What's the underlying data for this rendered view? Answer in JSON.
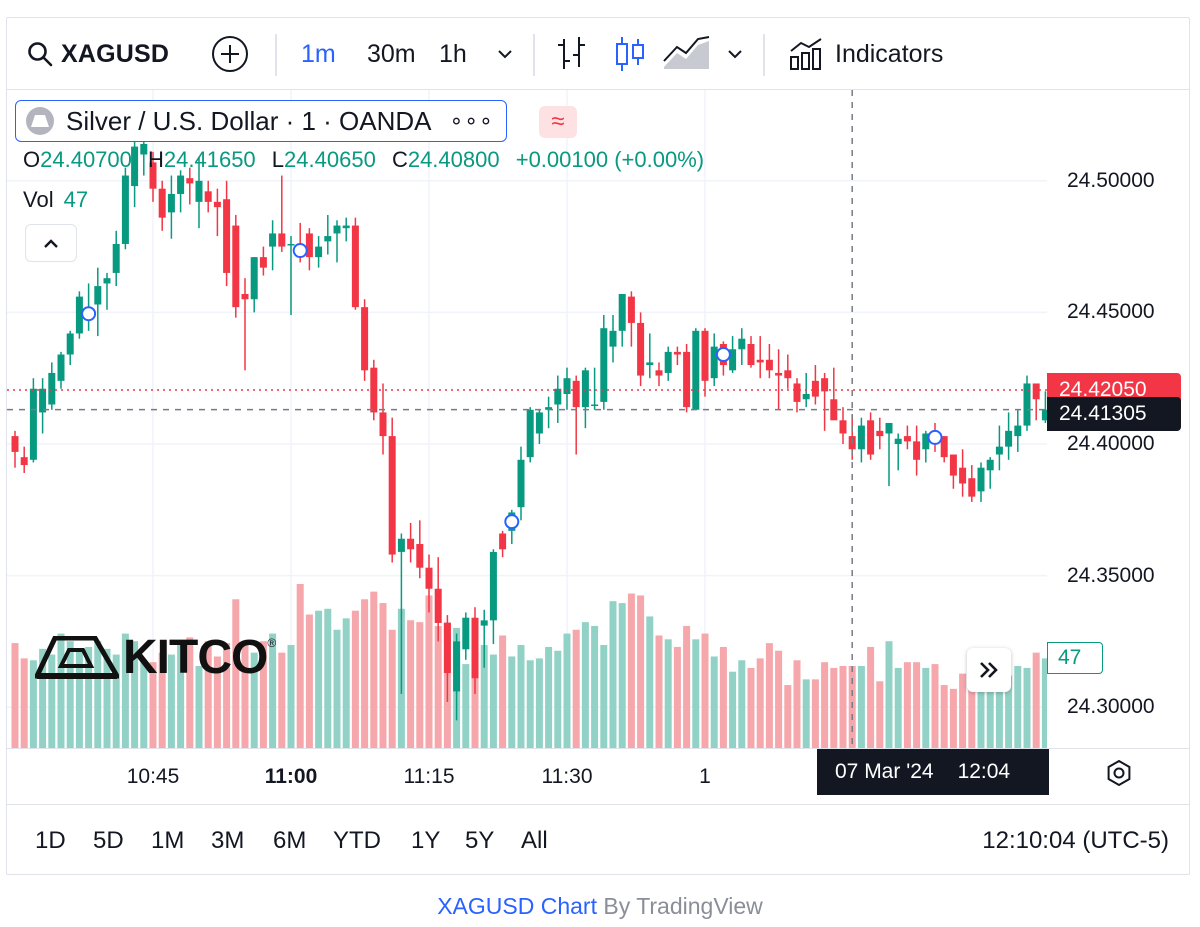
{
  "toolbar": {
    "symbol": "XAGUSD",
    "intervals": [
      "1m",
      "30m",
      "1h"
    ],
    "active_interval": "1m",
    "indicators_label": "Indicators"
  },
  "legend": {
    "title": "Silver / U.S. Dollar · 1 · OANDA",
    "more": "∘∘∘",
    "compare_glyph": "≈",
    "o_label": "O",
    "o_value": "24.40700",
    "h_label": "H",
    "h_value": "24.41650",
    "l_label": "L",
    "l_value": "24.40650",
    "c_label": "C",
    "c_value": "24.40800",
    "change": "+0.00100 (+0.00%)",
    "vol_label": "Vol",
    "vol_value": "47"
  },
  "watermark": {
    "text": "KITCO",
    "reg": "®"
  },
  "badges": {
    "last_price": "24.42050",
    "crosshair_price": "24.41305",
    "volume": "47",
    "crosshair_date": "07 Mar '24",
    "crosshair_time": "12:04"
  },
  "colors": {
    "up": "#089981",
    "down": "#f23645",
    "up_volume": "#92d2c6",
    "down_volume": "#f5a7ab",
    "accent": "#2962ff"
  },
  "ranges": [
    "1D",
    "5D",
    "1M",
    "3M",
    "6M",
    "YTD",
    "1Y",
    "5Y",
    "All"
  ],
  "clock": "12:10:04 (UTC-5)",
  "credit": {
    "link": "XAGUSD Chart",
    "rest": " By TradingView"
  },
  "chart_data": {
    "type": "candlestick",
    "symbol": "XAGUSD",
    "interval": "1m",
    "y_ticks": [
      "24.30000",
      "24.35000",
      "24.40000",
      "24.45000",
      "24.50000"
    ],
    "ylim": [
      24.2845,
      24.5345
    ],
    "x_ticks": [
      {
        "label": "10:45",
        "index": 15,
        "bold": false
      },
      {
        "label": "11:00",
        "index": 30,
        "bold": true
      },
      {
        "label": "11:15",
        "index": 45,
        "bold": false
      },
      {
        "label": "11:30",
        "index": 60,
        "bold": false
      },
      {
        "label": "1",
        "index": 75,
        "bold": false
      }
    ],
    "last_price": 24.4205,
    "crosshair_price": 24.41305,
    "crosshair_index": 91,
    "ohlcv": [
      [
        24.403,
        24.405,
        24.391,
        24.397,
        55
      ],
      [
        24.395,
        24.399,
        24.389,
        24.392,
        47
      ],
      [
        24.394,
        24.425,
        24.393,
        24.421,
        46
      ],
      [
        24.412,
        24.425,
        24.404,
        24.421,
        52
      ],
      [
        24.415,
        24.431,
        24.413,
        24.427,
        49
      ],
      [
        24.424,
        24.435,
        24.421,
        24.434,
        60
      ],
      [
        24.434,
        24.443,
        24.43,
        24.442,
        56
      ],
      [
        24.442,
        24.458,
        24.44,
        24.456,
        51
      ],
      [
        24.447,
        24.461,
        24.443,
        24.452,
        53
      ],
      [
        24.453,
        24.467,
        24.441,
        24.46,
        56
      ],
      [
        24.461,
        24.465,
        24.451,
        24.463,
        52
      ],
      [
        24.465,
        24.481,
        24.46,
        24.476,
        49
      ],
      [
        24.476,
        24.505,
        24.474,
        24.502,
        60
      ],
      [
        24.498,
        24.516,
        24.49,
        24.513,
        56
      ],
      [
        24.51,
        24.519,
        24.502,
        24.514,
        46
      ],
      [
        24.507,
        24.511,
        24.492,
        24.497,
        45
      ],
      [
        24.497,
        24.5,
        24.481,
        24.486,
        50
      ],
      [
        24.488,
        24.502,
        24.478,
        24.495,
        49
      ],
      [
        24.495,
        24.504,
        24.488,
        24.502,
        56
      ],
      [
        24.501,
        24.505,
        24.491,
        24.499,
        58
      ],
      [
        24.492,
        24.509,
        24.482,
        24.5,
        43
      ],
      [
        24.496,
        24.5,
        24.488,
        24.492,
        56
      ],
      [
        24.492,
        24.497,
        24.479,
        24.49,
        48
      ],
      [
        24.493,
        24.5,
        24.46,
        24.465,
        55
      ],
      [
        24.483,
        24.487,
        24.448,
        24.452,
        78
      ],
      [
        24.457,
        24.463,
        24.428,
        24.455,
        55
      ],
      [
        24.455,
        24.471,
        24.45,
        24.471,
        50
      ],
      [
        24.471,
        24.475,
        24.464,
        24.467,
        56
      ],
      [
        24.475,
        24.485,
        24.466,
        24.48,
        60
      ],
      [
        24.48,
        24.502,
        24.473,
        24.475,
        50
      ],
      [
        24.476,
        24.479,
        24.449,
        24.476,
        54
      ],
      [
        24.476,
        24.484,
        24.469,
        24.471,
        86
      ],
      [
        24.48,
        24.482,
        24.466,
        24.471,
        70
      ],
      [
        24.471,
        24.479,
        24.467,
        24.475,
        72
      ],
      [
        24.477,
        24.487,
        24.472,
        24.479,
        73
      ],
      [
        24.48,
        24.485,
        24.469,
        24.483,
        62
      ],
      [
        24.482,
        24.486,
        24.477,
        24.483,
        68
      ],
      [
        24.483,
        24.486,
        24.451,
        24.452,
        72
      ],
      [
        24.452,
        24.455,
        24.424,
        24.428,
        78
      ],
      [
        24.429,
        24.432,
        24.409,
        24.412,
        82
      ],
      [
        24.412,
        24.423,
        24.396,
        24.403,
        76
      ],
      [
        24.403,
        24.41,
        24.355,
        24.358,
        62
      ],
      [
        24.359,
        24.366,
        24.305,
        24.364,
        73
      ],
      [
        24.364,
        24.37,
        24.355,
        24.36,
        67
      ],
      [
        24.362,
        24.371,
        24.349,
        24.353,
        66
      ],
      [
        24.353,
        24.358,
        24.336,
        24.345,
        80
      ],
      [
        24.345,
        24.357,
        24.325,
        24.332,
        64
      ],
      [
        24.332,
        24.335,
        24.302,
        24.313,
        66
      ],
      [
        24.306,
        24.328,
        24.295,
        24.325,
        63
      ],
      [
        24.322,
        24.336,
        24.318,
        24.334,
        44
      ],
      [
        24.334,
        24.338,
        24.305,
        24.311,
        61
      ],
      [
        24.331,
        24.337,
        24.315,
        24.333,
        54
      ],
      [
        24.333,
        24.36,
        24.324,
        24.359,
        49
      ],
      [
        24.366,
        24.367,
        24.357,
        24.36,
        59
      ],
      [
        24.367,
        24.375,
        24.362,
        24.374,
        48
      ],
      [
        24.376,
        24.399,
        24.371,
        24.394,
        54
      ],
      [
        24.395,
        24.414,
        24.393,
        24.413,
        46
      ],
      [
        24.404,
        24.413,
        24.4,
        24.412,
        47
      ],
      [
        24.413,
        24.418,
        24.406,
        24.414,
        53
      ],
      [
        24.415,
        24.426,
        24.408,
        24.421,
        51
      ],
      [
        24.419,
        24.429,
        24.413,
        24.425,
        60
      ],
      [
        24.424,
        24.426,
        24.396,
        24.414,
        62
      ],
      [
        24.414,
        24.429,
        24.406,
        24.428,
        66
      ],
      [
        24.415,
        24.429,
        24.413,
        24.415,
        64
      ],
      [
        24.416,
        24.449,
        24.413,
        24.444,
        54
      ],
      [
        24.437,
        24.449,
        24.431,
        24.443,
        77
      ],
      [
        24.443,
        24.457,
        24.437,
        24.457,
        76
      ],
      [
        24.456,
        24.458,
        24.437,
        24.446,
        81
      ],
      [
        24.446,
        24.45,
        24.422,
        24.426,
        80
      ],
      [
        24.43,
        24.442,
        24.425,
        24.431,
        69
      ],
      [
        24.428,
        24.431,
        24.422,
        24.426,
        59
      ],
      [
        24.427,
        24.437,
        24.424,
        24.435,
        57
      ],
      [
        24.435,
        24.437,
        24.43,
        24.434,
        53
      ],
      [
        24.435,
        24.438,
        24.412,
        24.414,
        64
      ],
      [
        24.413,
        24.444,
        24.413,
        24.443,
        57
      ],
      [
        24.443,
        24.444,
        24.418,
        24.424,
        60
      ],
      [
        24.425,
        24.442,
        24.422,
        24.437,
        48
      ],
      [
        24.438,
        24.439,
        24.426,
        24.43,
        53
      ],
      [
        24.428,
        24.441,
        24.427,
        24.436,
        40
      ],
      [
        24.436,
        24.444,
        24.43,
        24.44,
        46
      ],
      [
        24.438,
        24.441,
        24.429,
        24.43,
        42
      ],
      [
        24.432,
        24.441,
        24.425,
        24.431,
        47
      ],
      [
        24.432,
        24.438,
        24.425,
        24.428,
        55
      ],
      [
        24.427,
        24.436,
        24.413,
        24.426,
        51
      ],
      [
        24.428,
        24.434,
        24.421,
        24.425,
        33
      ],
      [
        24.423,
        24.425,
        24.412,
        24.416,
        46
      ],
      [
        24.417,
        24.427,
        24.414,
        24.419,
        36
      ],
      [
        24.424,
        24.43,
        24.415,
        24.418,
        36
      ],
      [
        24.425,
        24.427,
        24.405,
        24.42,
        45
      ],
      [
        24.417,
        24.429,
        24.411,
        24.409,
        42
      ],
      [
        24.409,
        24.414,
        24.4,
        24.404,
        43
      ],
      [
        24.403,
        24.411,
        24.394,
        24.398,
        43
      ],
      [
        24.398,
        24.41,
        24.393,
        24.407,
        43
      ],
      [
        24.409,
        24.412,
        24.394,
        24.396,
        53
      ],
      [
        24.405,
        24.41,
        24.398,
        24.403,
        35
      ],
      [
        24.404,
        24.405,
        24.384,
        24.408,
        56
      ],
      [
        24.4,
        24.404,
        24.39,
        24.402,
        42
      ],
      [
        24.403,
        24.407,
        24.398,
        24.401,
        45
      ],
      [
        24.401,
        24.407,
        24.388,
        24.394,
        45
      ],
      [
        24.398,
        24.405,
        24.393,
        24.404,
        42
      ],
      [
        24.403,
        24.408,
        24.397,
        24.402,
        44
      ],
      [
        24.403,
        24.403,
        24.393,
        24.395,
        33
      ],
      [
        24.396,
        24.396,
        24.383,
        24.388,
        31
      ],
      [
        24.391,
        24.398,
        24.38,
        24.385,
        39
      ],
      [
        24.387,
        24.392,
        24.378,
        24.38,
        35
      ],
      [
        24.382,
        24.393,
        24.378,
        24.391,
        44
      ],
      [
        24.39,
        24.395,
        24.383,
        24.394,
        41
      ],
      [
        24.396,
        24.407,
        24.39,
        24.399,
        46
      ],
      [
        24.399,
        24.412,
        24.394,
        24.405,
        38
      ],
      [
        24.403,
        24.413,
        24.397,
        24.407,
        43
      ],
      [
        24.407,
        24.426,
        24.405,
        24.423,
        42
      ],
      [
        24.423,
        24.42,
        24.409,
        24.417,
        50
      ],
      [
        24.409,
        24.42,
        24.408,
        24.413,
        47
      ]
    ],
    "markers": [
      8,
      31,
      54,
      77,
      100
    ]
  }
}
